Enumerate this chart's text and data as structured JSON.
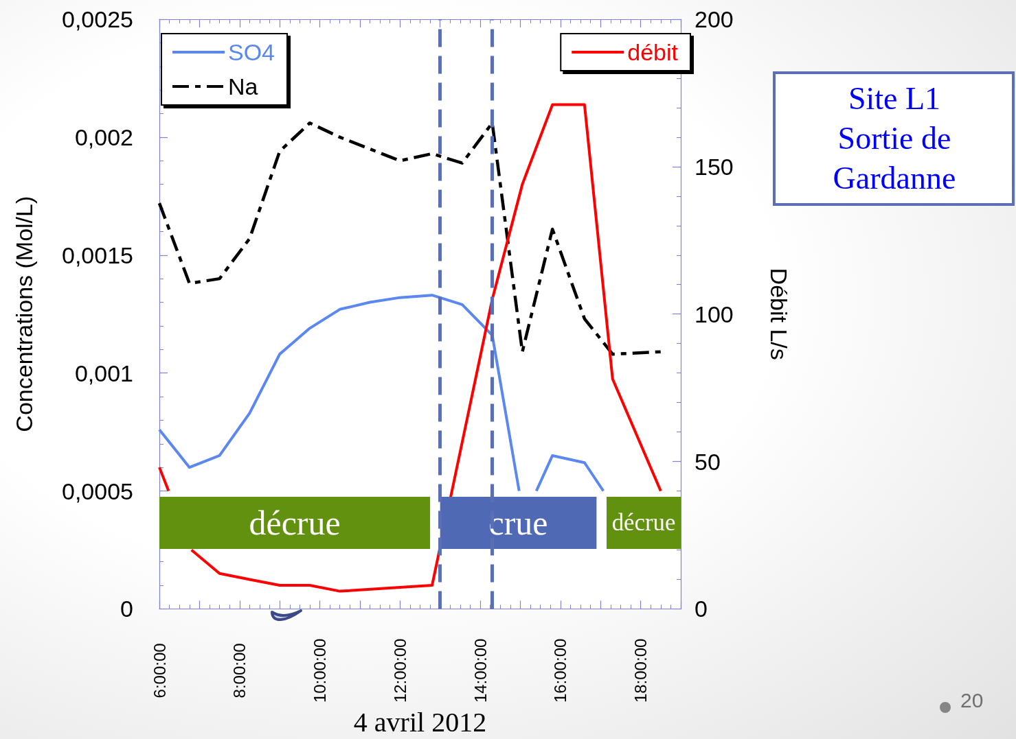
{
  "chart_data": {
    "type": "line",
    "title": "Site L1 Sortie de Gardanne",
    "xlabel": "4 avril 2012",
    "ylabel": "Concentrations (Mol/L)",
    "y2label": "Débit L/s",
    "annotations": [
      "20"
    ],
    "xlim": [
      6,
      19
    ],
    "xticks": [
      {
        "value": 6,
        "label": "6:00:00"
      },
      {
        "value": 7,
        "label": null
      },
      {
        "value": 8,
        "label": "8:00:00"
      },
      {
        "value": 9,
        "label": null
      },
      {
        "value": 10,
        "label": "10:00:00"
      },
      {
        "value": 11,
        "label": null
      },
      {
        "value": 12,
        "label": "12:00:00"
      },
      {
        "value": 13,
        "label": null
      },
      {
        "value": 14,
        "label": "14:00:00"
      },
      {
        "value": 15,
        "label": null
      },
      {
        "value": 16,
        "label": "16:00:00"
      },
      {
        "value": 17,
        "label": null
      },
      {
        "value": 18,
        "label": "18:00:00"
      },
      {
        "value": 19,
        "label": null
      }
    ],
    "ylim": [
      0,
      0.0025
    ],
    "yticks": [
      0,
      {
        "value": 0.0005,
        "label": "0,0005"
      },
      {
        "value": 0.001,
        "label": "0,001"
      },
      {
        "value": 0.0015,
        "label": "0,0015"
      },
      {
        "value": 0.002,
        "label": "0,002"
      },
      {
        "value": 0.0025,
        "label": "0,0025"
      }
    ],
    "y2lim": [
      0,
      200
    ],
    "y2ticks": [
      0,
      50,
      100,
      150,
      200
    ],
    "series": [
      {
        "name": "SO4",
        "color": "#5b87f0",
        "x": [
          6,
          6.75,
          7.5,
          8.25,
          9,
          9.75,
          10.5,
          11.25,
          12,
          12.8,
          13.55,
          14.3,
          14.97,
          15.2,
          15.4,
          15.8,
          16.6,
          17.07
        ],
        "values": [
          0.00076,
          0.0006,
          0.00065,
          0.00083,
          0.00108,
          0.00119,
          0.00127,
          0.0013,
          0.00132,
          0.00133,
          0.00129,
          0.00116,
          0.0005,
          null,
          0.0005,
          0.00065,
          0.00062,
          0.0005
        ]
      },
      {
        "name": "Na",
        "color": "#000000",
        "line_style": "dashed",
        "x": [
          6,
          6.75,
          7.5,
          8.25,
          9,
          9.75,
          10.5,
          11.25,
          12,
          12.8,
          13.55,
          14.3,
          15.05,
          15.8,
          16.6,
          17.3,
          18.5
        ],
        "values": [
          0.00172,
          0.00138,
          0.0014,
          0.00157,
          0.00194,
          0.00206,
          0.002,
          0.00195,
          0.0019,
          0.00193,
          0.00189,
          0.00206,
          0.00109,
          0.00161,
          0.00123,
          0.00108,
          0.00109
        ]
      },
      {
        "name": "débit",
        "color": "#ff0000",
        "axis": "y2",
        "x": [
          6,
          6.23,
          6.5,
          6.8,
          7.5,
          8.25,
          9,
          9.75,
          10.5,
          12.8,
          14.3,
          15.05,
          15.8,
          16.6,
          17.3,
          18.5
        ],
        "values": [
          48,
          40,
          null,
          20,
          12,
          10,
          8,
          8,
          6,
          8,
          105,
          144,
          171,
          171,
          78,
          40
        ]
      }
    ],
    "ref_lines": [
      {
        "axis": "x",
        "value": 13,
        "color": "#5b6fb5",
        "line_style": "dashed"
      },
      {
        "axis": "x",
        "value": 14.3,
        "color": "#5b6fb5",
        "line_style": "dashed"
      }
    ],
    "bands": [
      {
        "axis": "x",
        "from": 6,
        "to": 12.75,
        "label": "décrue",
        "color": "#62900f"
      },
      {
        "axis": "x",
        "from": 13,
        "to": 16.9,
        "label": "crue",
        "color": "#4f69b5"
      },
      {
        "axis": "x",
        "from": 17.15,
        "to": 19,
        "label": "décrue",
        "color": "#62900f"
      }
    ],
    "legend": "top",
    "marker": "none"
  }
}
